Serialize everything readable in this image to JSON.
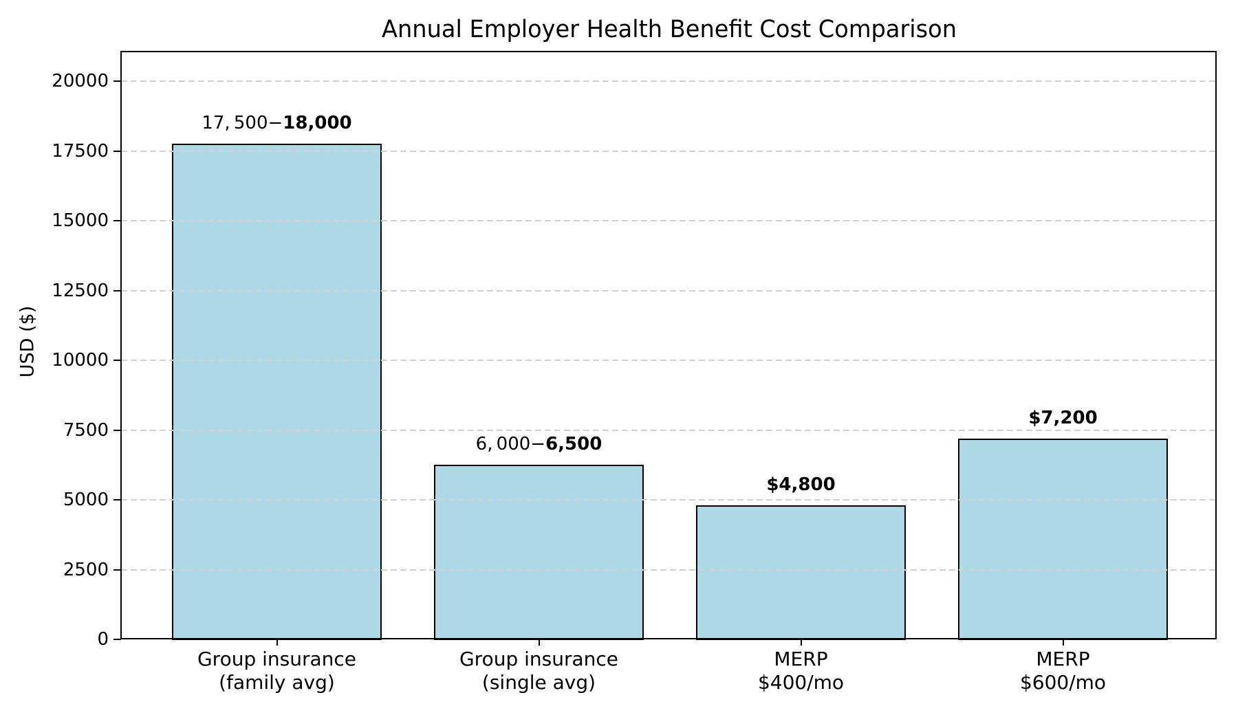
{
  "chart_data": {
    "type": "bar",
    "title": "Annual Employer Health Benefit Cost Comparison",
    "ylabel": "USD ($)",
    "xlabel": "",
    "categories": [
      {
        "line1": "Group insurance",
        "line2": "(family avg)"
      },
      {
        "line1": "Group insurance",
        "line2": "(single avg)"
      },
      {
        "line1": "MERP",
        "line2": "$400/mo"
      },
      {
        "line1": "MERP",
        "line2": "$600/mo"
      }
    ],
    "values": [
      17750,
      6250,
      4800,
      7200
    ],
    "bar_value_labels": [
      {
        "regular": "17, 500−",
        "bold": "18,000"
      },
      {
        "regular": "6, 000−",
        "bold": "6,500"
      },
      {
        "regular": "",
        "bold": "$4,800"
      },
      {
        "regular": "",
        "bold": "$7,200"
      }
    ],
    "yticks": [
      0,
      2500,
      5000,
      7500,
      10000,
      12500,
      15000,
      17500,
      20000
    ],
    "ylim": [
      0,
      21060
    ],
    "grid": {
      "axis": "y",
      "linestyle": "dashed",
      "color": "#d0d0d0",
      "drawn_above_bars": true
    },
    "colors": {
      "bar_fill": "#ADD8E6",
      "bar_edge": "#000000",
      "spine": "#000000",
      "text": "#000000",
      "background": "#ffffff"
    }
  }
}
